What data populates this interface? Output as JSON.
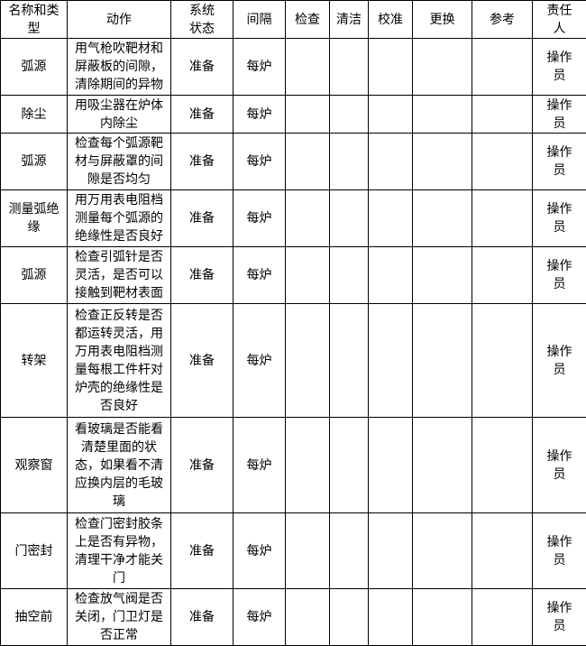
{
  "headers": [
    "名称和类型",
    "动作",
    "系统状态",
    "间隔",
    "检查",
    "清洁",
    "校准",
    "更换",
    "参考",
    "责任人"
  ],
  "rows": [
    {
      "name": "弧源",
      "action": "用气枪吹靶材和屏蔽板的间隙，清除期间的异物",
      "status": "准备",
      "interval": "每炉",
      "owner": "操作员"
    },
    {
      "name": "除尘",
      "action": "用吸尘器在炉体内除尘",
      "status": "准备",
      "interval": "每炉",
      "owner": "操作员"
    },
    {
      "name": "弧源",
      "action": "检查每个弧源靶材与屏蔽罩的间隙是否均匀",
      "status": "准备",
      "interval": "每炉",
      "owner": "操作员"
    },
    {
      "name": "测量弧绝缘",
      "action": "用万用表电阻档测量每个弧源的绝缘性是否良好",
      "status": "准备",
      "interval": "每炉",
      "owner": "操作员"
    },
    {
      "name": "弧源",
      "action": "检查引弧针是否灵活，是否可以接触到靶材表面",
      "status": "准备",
      "interval": "每炉",
      "owner": "操作员"
    },
    {
      "name": "转架",
      "action": "检查正反转是否都运转灵活，用万用表电阻档测量每根工件杆对炉壳的绝缘性是否良好",
      "status": "准备",
      "interval": "每炉",
      "owner": "操作员"
    },
    {
      "name": "观察窗",
      "action": "看玻璃是否能看清楚里面的状态，如果看不清应换内层的毛玻璃",
      "status": "准备",
      "interval": "每炉",
      "owner": "操作员"
    },
    {
      "name": "门密封",
      "action": "检查门密封胶条上是否有异物，清理干净才能关门",
      "status": "准备",
      "interval": "每炉",
      "owner": "操作员"
    },
    {
      "name": "抽空前",
      "action": "检查放气阀是否关闭，门卫灯是否正常",
      "status": "准备",
      "interval": "每炉",
      "owner": "操作员"
    }
  ]
}
